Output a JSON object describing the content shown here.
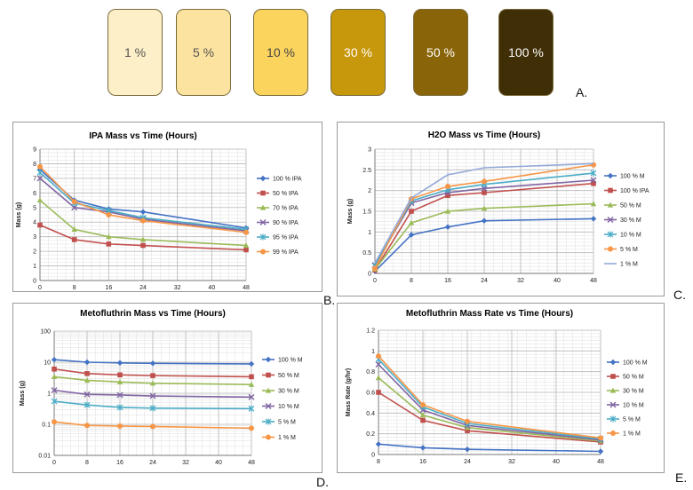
{
  "swatches": [
    {
      "label": "1 %",
      "color": "#fdefc8",
      "text_color": "#555555"
    },
    {
      "label": "5 %",
      "color": "#fde3a0",
      "text_color": "#555555"
    },
    {
      "label": "10 %",
      "color": "#fbd45e",
      "text_color": "#444444"
    },
    {
      "label": "30 %",
      "color": "#c8980c",
      "text_color": "#ffffff"
    },
    {
      "label": "50 %",
      "color": "#8a6408",
      "text_color": "#ffffff"
    },
    {
      "label": "100 %",
      "color": "#3f2e06",
      "text_color": "#ffffff"
    }
  ],
  "panel_labels": {
    "a": "A.",
    "b": "B.",
    "c": "C.",
    "d": "D.",
    "e": "E."
  },
  "chart_data": [
    {
      "id": "B",
      "type": "line",
      "title": "IPA Mass vs Time (Hours)",
      "xlabel": "",
      "ylabel": "Mass (g)",
      "xlim": [
        0,
        48
      ],
      "ylim": [
        0,
        9
      ],
      "xticks": [
        0,
        8,
        16,
        24,
        32,
        40,
        48
      ],
      "yticks": [
        0,
        1,
        2,
        3,
        4,
        5,
        6,
        7,
        8,
        9
      ],
      "log_y": false,
      "grid": true,
      "legend": "right",
      "x": [
        0,
        8,
        16,
        24,
        48
      ],
      "series": [
        {
          "name": "100 % IPA",
          "color": "#4472c4",
          "marker": "diamond",
          "values": [
            7.6,
            5.5,
            4.9,
            4.7,
            3.6
          ]
        },
        {
          "name": "50 % IPA",
          "color": "#c0504d",
          "marker": "square",
          "values": [
            3.8,
            2.8,
            2.5,
            2.4,
            2.1
          ]
        },
        {
          "name": "70 % IPA",
          "color": "#9bbb59",
          "marker": "triangle",
          "values": [
            5.5,
            3.5,
            3.0,
            2.8,
            2.4
          ]
        },
        {
          "name": "90 % IPA",
          "color": "#8064a2",
          "marker": "x",
          "values": [
            7.0,
            5.0,
            4.7,
            4.2,
            3.4
          ]
        },
        {
          "name": "95 % IPA",
          "color": "#4bacc6",
          "marker": "star",
          "values": [
            7.4,
            5.3,
            4.8,
            4.3,
            3.5
          ]
        },
        {
          "name": "99 % IPA",
          "color": "#f79646",
          "marker": "circle",
          "values": [
            7.8,
            5.4,
            4.5,
            4.1,
            3.3
          ]
        }
      ]
    },
    {
      "id": "C",
      "type": "line",
      "title": "H2O Mass vs Time (Hours)",
      "xlabel": "",
      "ylabel": "Mass (g)",
      "xlim": [
        0,
        48
      ],
      "ylim": [
        0,
        3
      ],
      "xticks": [
        0,
        8,
        16,
        24,
        32,
        40,
        48
      ],
      "yticks": [
        0,
        0.5,
        1,
        1.5,
        2,
        2.5,
        3
      ],
      "ytick_labels": [
        "0",
        "0.5",
        "1",
        "1.5",
        "2",
        "2.5",
        "3"
      ],
      "log_y": false,
      "grid": true,
      "legend": "right",
      "x": [
        0,
        8,
        16,
        24,
        48
      ],
      "series": [
        {
          "name": "100 % M",
          "color": "#4472c4",
          "marker": "diamond",
          "values": [
            0.05,
            0.93,
            1.12,
            1.27,
            1.32
          ]
        },
        {
          "name": "100 % IPA",
          "color": "#c0504d",
          "marker": "square",
          "values": [
            0.08,
            1.5,
            1.88,
            1.95,
            2.17
          ]
        },
        {
          "name": "50 % M",
          "color": "#9bbb59",
          "marker": "triangle",
          "values": [
            0.1,
            1.22,
            1.5,
            1.57,
            1.68
          ]
        },
        {
          "name": "30 % M",
          "color": "#8064a2",
          "marker": "x",
          "values": [
            0.2,
            1.7,
            1.95,
            2.05,
            2.25
          ]
        },
        {
          "name": "10 % M",
          "color": "#4bacc6",
          "marker": "star",
          "values": [
            0.18,
            1.75,
            2.02,
            2.15,
            2.42
          ]
        },
        {
          "name": "5 % M",
          "color": "#f79646",
          "marker": "circle",
          "values": [
            0.12,
            1.8,
            2.1,
            2.22,
            2.62
          ]
        },
        {
          "name": "1 % M",
          "color": "#93a9d8",
          "marker": "none",
          "values": [
            0.25,
            1.82,
            2.38,
            2.55,
            2.65
          ]
        }
      ]
    },
    {
      "id": "D",
      "type": "line",
      "title": "Metofluthrin Mass vs Time (Hours)",
      "xlabel": "",
      "ylabel": "Mass (g)",
      "xlim": [
        0,
        48
      ],
      "ylim": [
        0.01,
        100
      ],
      "xticks": [
        0,
        8,
        16,
        24,
        32,
        40,
        48
      ],
      "yticks": [
        0.01,
        0.1,
        1,
        10,
        100
      ],
      "ytick_labels": [
        "0.01",
        "0.1",
        "1",
        "10",
        "100"
      ],
      "log_y": true,
      "grid": true,
      "legend": "right",
      "x": [
        0,
        8,
        16,
        24,
        48
      ],
      "series": [
        {
          "name": "100 % M",
          "color": "#4472c4",
          "marker": "diamond",
          "values": [
            12,
            10,
            9.5,
            9.2,
            8.8
          ]
        },
        {
          "name": "50 % M",
          "color": "#c0504d",
          "marker": "square",
          "values": [
            6,
            4.3,
            3.9,
            3.7,
            3.4
          ]
        },
        {
          "name": "30 % M",
          "color": "#9bbb59",
          "marker": "triangle",
          "values": [
            3.4,
            2.6,
            2.3,
            2.1,
            1.9
          ]
        },
        {
          "name": "10 % M",
          "color": "#8064a2",
          "marker": "x",
          "values": [
            1.25,
            0.92,
            0.88,
            0.82,
            0.75
          ]
        },
        {
          "name": "5 % M",
          "color": "#4bacc6",
          "marker": "star",
          "values": [
            0.55,
            0.42,
            0.35,
            0.33,
            0.32
          ]
        },
        {
          "name": "1 % M",
          "color": "#f79646",
          "marker": "circle",
          "values": [
            0.12,
            0.092,
            0.088,
            0.085,
            0.075
          ]
        }
      ]
    },
    {
      "id": "E",
      "type": "line",
      "title": "Metofluthrin Mass Rate vs Time (Hours)",
      "xlabel": "",
      "ylabel": "Mass Rate (g/hr)",
      "xlim": [
        8,
        48
      ],
      "ylim": [
        0,
        1.2
      ],
      "xticks": [
        8,
        16,
        24,
        32,
        40,
        48
      ],
      "yticks": [
        0,
        0.2,
        0.4,
        0.6,
        0.8,
        1,
        1.2
      ],
      "ytick_labels": [
        "0",
        "0.2",
        "0.4",
        "0.6",
        "0.8",
        "1",
        "1.2"
      ],
      "log_y": false,
      "grid": true,
      "legend": "right",
      "x": [
        8,
        16,
        24,
        48
      ],
      "series": [
        {
          "name": "100 % M",
          "color": "#4472c4",
          "marker": "diamond",
          "values": [
            0.1,
            0.065,
            0.05,
            0.03
          ]
        },
        {
          "name": "50 % M",
          "color": "#c0504d",
          "marker": "square",
          "values": [
            0.6,
            0.33,
            0.23,
            0.12
          ]
        },
        {
          "name": "30 % M",
          "color": "#9bbb59",
          "marker": "triangle",
          "values": [
            0.74,
            0.38,
            0.26,
            0.13
          ]
        },
        {
          "name": "10 % M",
          "color": "#8064a2",
          "marker": "x",
          "values": [
            0.87,
            0.43,
            0.28,
            0.14
          ]
        },
        {
          "name": "5 % M",
          "color": "#4bacc6",
          "marker": "star",
          "values": [
            0.92,
            0.46,
            0.3,
            0.15
          ]
        },
        {
          "name": "1 % M",
          "color": "#f79646",
          "marker": "circle",
          "values": [
            0.95,
            0.48,
            0.32,
            0.16
          ]
        }
      ]
    }
  ]
}
